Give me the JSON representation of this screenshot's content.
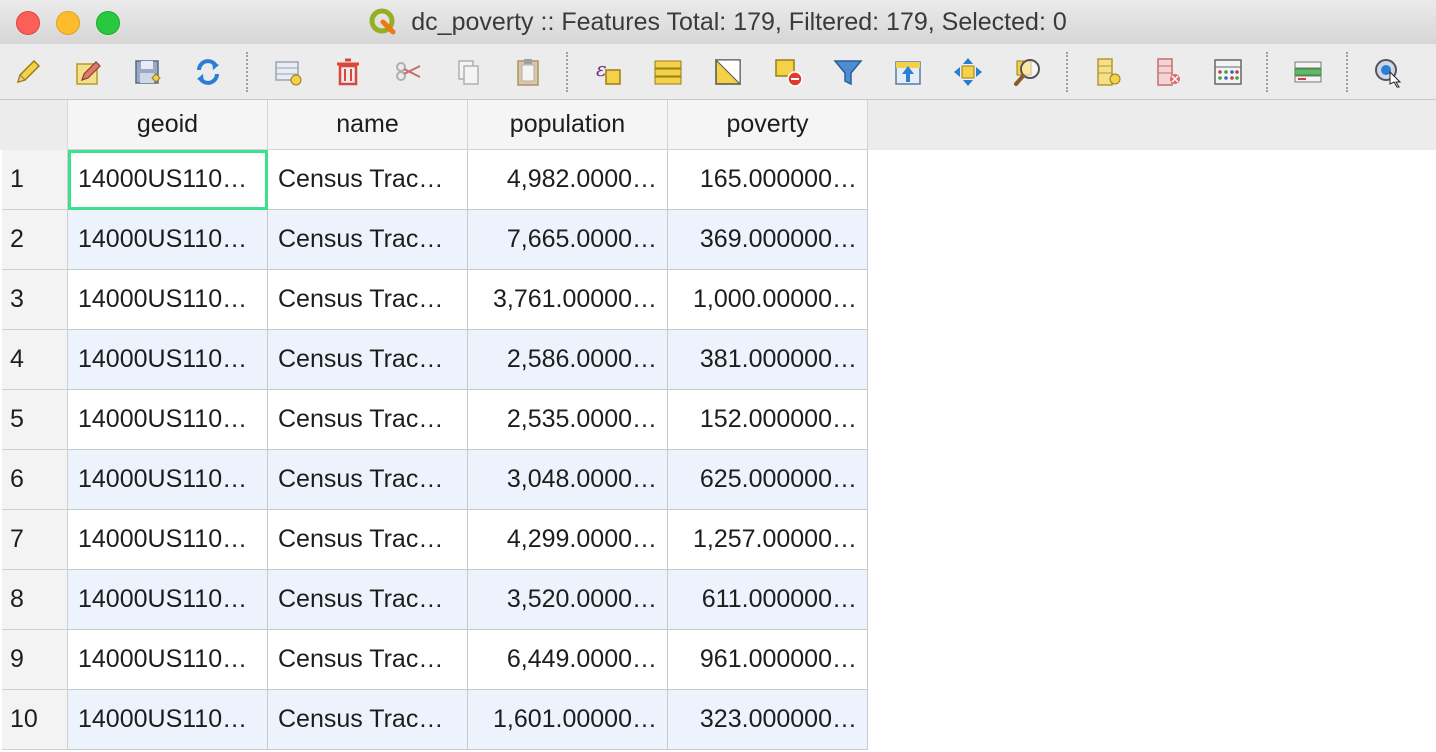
{
  "window": {
    "title": "dc_poverty :: Features Total: 179, Filtered: 179, Selected: 0"
  },
  "toolbar": {
    "buttons": [
      {
        "name": "toggle-editing-icon"
      },
      {
        "name": "multi-edit-icon"
      },
      {
        "name": "save-edits-icon"
      },
      {
        "name": "reload-icon"
      },
      {
        "name": "add-feature-icon"
      },
      {
        "name": "delete-feature-icon"
      },
      {
        "name": "cut-icon"
      },
      {
        "name": "copy-icon"
      },
      {
        "name": "paste-icon"
      },
      {
        "name": "select-by-expression-icon"
      },
      {
        "name": "select-all-icon"
      },
      {
        "name": "invert-selection-icon"
      },
      {
        "name": "deselect-all-icon"
      },
      {
        "name": "filter-icon"
      },
      {
        "name": "move-selection-to-top-icon"
      },
      {
        "name": "pan-to-selection-icon"
      },
      {
        "name": "zoom-to-selection-icon"
      },
      {
        "name": "new-field-icon"
      },
      {
        "name": "delete-field-icon"
      },
      {
        "name": "field-calculator-icon"
      },
      {
        "name": "conditional-formatting-icon"
      },
      {
        "name": "actions-icon"
      }
    ]
  },
  "table": {
    "columns": [
      "geoid",
      "name",
      "population",
      "poverty"
    ],
    "rows": [
      {
        "num": "1",
        "geoid": "14000US110…",
        "name": "Census Trac…",
        "population": "4,982.0000…",
        "poverty": "165.000000…"
      },
      {
        "num": "2",
        "geoid": "14000US110…",
        "name": "Census Trac…",
        "population": "7,665.0000…",
        "poverty": "369.000000…"
      },
      {
        "num": "3",
        "geoid": "14000US110…",
        "name": "Census Trac…",
        "population": "3,761.00000…",
        "poverty": "1,000.00000…"
      },
      {
        "num": "4",
        "geoid": "14000US110…",
        "name": "Census Trac…",
        "population": "2,586.0000…",
        "poverty": "381.000000…"
      },
      {
        "num": "5",
        "geoid": "14000US110…",
        "name": "Census Trac…",
        "population": "2,535.0000…",
        "poverty": "152.000000…"
      },
      {
        "num": "6",
        "geoid": "14000US110…",
        "name": "Census Trac…",
        "population": "3,048.0000…",
        "poverty": "625.000000…"
      },
      {
        "num": "7",
        "geoid": "14000US110…",
        "name": "Census Trac…",
        "population": "4,299.0000…",
        "poverty": "1,257.00000…"
      },
      {
        "num": "8",
        "geoid": "14000US110…",
        "name": "Census Trac…",
        "population": "3,520.0000…",
        "poverty": "611.000000…"
      },
      {
        "num": "9",
        "geoid": "14000US110…",
        "name": "Census Trac…",
        "population": "6,449.0000…",
        "poverty": "961.000000…"
      },
      {
        "num": "10",
        "geoid": "14000US110…",
        "name": "Census Trac…",
        "population": "1,601.00000…",
        "poverty": "323.000000…"
      }
    ]
  }
}
